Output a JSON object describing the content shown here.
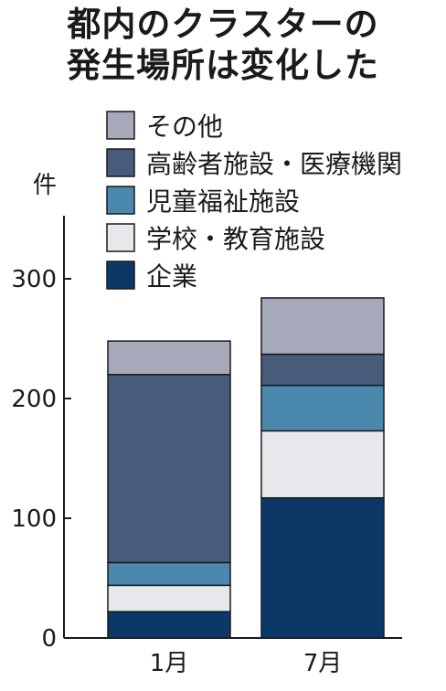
{
  "title_lines": [
    "都内のクラスターの",
    "発生場所は変化した"
  ],
  "chart_data": {
    "type": "bar",
    "stacked": true,
    "ylabel": "件",
    "ylim": [
      0,
      360
    ],
    "yticks": [
      0,
      100,
      200,
      300
    ],
    "categories": [
      "1月",
      "7月"
    ],
    "series": [
      {
        "name": "企業",
        "values": [
          22,
          117
        ],
        "color": "#0b3866"
      },
      {
        "name": "学校・教育施設",
        "values": [
          22,
          56
        ],
        "color": "#e6e8ec"
      },
      {
        "name": "児童福祉施設",
        "values": [
          19,
          38
        ],
        "color": "#4a88ad"
      },
      {
        "name": "高齢者施設・医療機関",
        "values": [
          157,
          26
        ],
        "color": "#475b7b"
      },
      {
        "name": "その他",
        "values": [
          28,
          47
        ],
        "color": "#a6a9ba"
      }
    ],
    "legend_order": [
      "その他",
      "高齢者施設・医療機関",
      "児童福祉施設",
      "学校・教育施設",
      "企業"
    ],
    "legend_placement": "top-left",
    "grid": false
  }
}
